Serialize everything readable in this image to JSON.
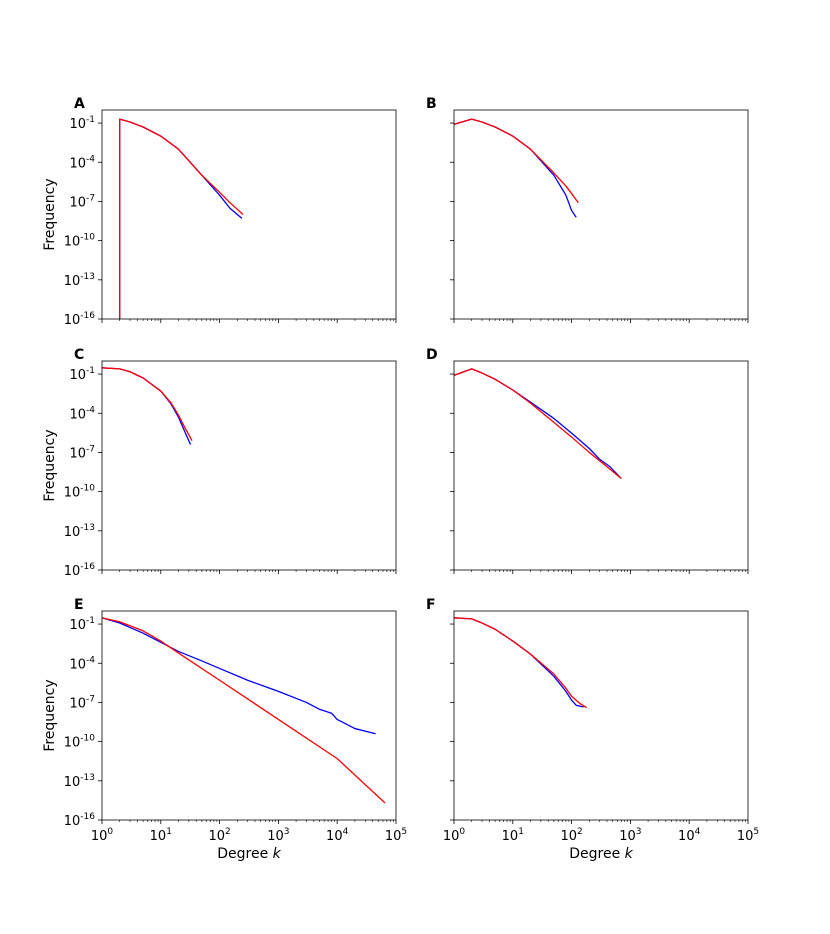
{
  "chart_data": {
    "type": "line",
    "xlabel": "Degree k",
    "ylabel": "Frequency",
    "xscale": "log",
    "yscale": "log",
    "xlim": [
      1,
      100000
    ],
    "ylim": [
      1e-16,
      1
    ],
    "xticklabels": [
      "10^0",
      "10^1",
      "10^2",
      "10^3",
      "10^4",
      "10^5"
    ],
    "yticklabels": [
      "10^-1",
      "10^-4",
      "10^-7",
      "10^-10",
      "10^-13",
      "10^-16"
    ],
    "grid": false,
    "colors": {
      "series_1": "#0000ff",
      "series_2": "#ff0000"
    },
    "panels": [
      {
        "label": "A",
        "series": [
          {
            "color": "#0000ff",
            "points": [
              [
                2,
                1e-16
              ],
              [
                2,
                0.2
              ],
              [
                3,
                0.12
              ],
              [
                5,
                0.05
              ],
              [
                10,
                0.01
              ],
              [
                20,
                0.001
              ],
              [
                50,
                1e-05
              ],
              [
                100,
                3e-07
              ],
              [
                150,
                3e-08
              ],
              [
                200,
                1e-08
              ],
              [
                240,
                5e-09
              ]
            ]
          },
          {
            "color": "#ff0000",
            "points": [
              [
                2,
                1e-16
              ],
              [
                2,
                0.2
              ],
              [
                3,
                0.12
              ],
              [
                5,
                0.05
              ],
              [
                10,
                0.01
              ],
              [
                20,
                0.001
              ],
              [
                50,
                1e-05
              ],
              [
                100,
                5e-07
              ],
              [
                150,
                8e-08
              ],
              [
                200,
                2.5e-08
              ],
              [
                250,
                1e-08
              ]
            ]
          }
        ]
      },
      {
        "label": "B",
        "series": [
          {
            "color": "#0000ff",
            "points": [
              [
                1,
                0.08
              ],
              [
                2,
                0.2
              ],
              [
                3,
                0.12
              ],
              [
                5,
                0.05
              ],
              [
                10,
                0.01
              ],
              [
                20,
                0.001
              ],
              [
                50,
                1e-05
              ],
              [
                80,
                3e-07
              ],
              [
                100,
                2e-08
              ],
              [
                120,
                6e-09
              ]
            ]
          },
          {
            "color": "#ff0000",
            "points": [
              [
                1,
                0.08
              ],
              [
                2,
                0.2
              ],
              [
                3,
                0.12
              ],
              [
                5,
                0.05
              ],
              [
                10,
                0.01
              ],
              [
                20,
                0.001
              ],
              [
                50,
                1.5e-05
              ],
              [
                80,
                1.5e-06
              ],
              [
                100,
                4e-07
              ],
              [
                130,
                8e-08
              ]
            ]
          }
        ]
      },
      {
        "label": "C",
        "series": [
          {
            "color": "#0000ff",
            "points": [
              [
                1,
                0.3
              ],
              [
                2,
                0.25
              ],
              [
                3,
                0.15
              ],
              [
                5,
                0.05
              ],
              [
                10,
                0.005
              ],
              [
                15,
                0.0005
              ],
              [
                20,
                5e-05
              ],
              [
                25,
                5e-06
              ],
              [
                32,
                4e-07
              ]
            ]
          },
          {
            "color": "#ff0000",
            "points": [
              [
                1,
                0.3
              ],
              [
                2,
                0.25
              ],
              [
                3,
                0.15
              ],
              [
                5,
                0.05
              ],
              [
                10,
                0.005
              ],
              [
                15,
                0.0006
              ],
              [
                20,
                7e-05
              ],
              [
                25,
                1e-05
              ],
              [
                34,
                8e-07
              ]
            ]
          }
        ]
      },
      {
        "label": "D",
        "series": [
          {
            "color": "#0000ff",
            "points": [
              [
                1,
                0.08
              ],
              [
                2,
                0.25
              ],
              [
                3,
                0.12
              ],
              [
                5,
                0.04
              ],
              [
                10,
                0.006
              ],
              [
                20,
                0.0007
              ],
              [
                50,
                4e-05
              ],
              [
                100,
                3e-06
              ],
              [
                200,
                2e-07
              ],
              [
                300,
                3e-08
              ],
              [
                450,
                8e-09
              ],
              [
                700,
                1e-09
              ]
            ]
          },
          {
            "color": "#ff0000",
            "points": [
              [
                1,
                0.08
              ],
              [
                2,
                0.25
              ],
              [
                3,
                0.12
              ],
              [
                5,
                0.04
              ],
              [
                10,
                0.006
              ],
              [
                20,
                0.0006
              ],
              [
                50,
                2e-05
              ],
              [
                100,
                1.5e-06
              ],
              [
                200,
                1e-07
              ],
              [
                400,
                8e-09
              ],
              [
                700,
                1e-09
              ]
            ]
          }
        ]
      },
      {
        "label": "E",
        "series": [
          {
            "color": "#0000ff",
            "points": [
              [
                1,
                0.3
              ],
              [
                2,
                0.12
              ],
              [
                5,
                0.02
              ],
              [
                10,
                0.004
              ],
              [
                20,
                0.0008
              ],
              [
                50,
                0.00015
              ],
              [
                100,
                4e-05
              ],
              [
                300,
                5e-06
              ],
              [
                1000,
                7e-07
              ],
              [
                3000,
                1e-07
              ],
              [
                5000,
                3e-08
              ],
              [
                8000,
                1.5e-08
              ],
              [
                10000,
                5e-09
              ],
              [
                20000,
                1e-09
              ],
              [
                45000,
                4e-10
              ]
            ]
          },
          {
            "color": "#ff0000",
            "points": [
              [
                1,
                0.3
              ],
              [
                2,
                0.15
              ],
              [
                5,
                0.03
              ],
              [
                10,
                0.005
              ],
              [
                20,
                0.0006
              ],
              [
                100,
                5e-06
              ],
              [
                1000,
                5e-09
              ],
              [
                10000,
                5e-12
              ],
              [
                65000,
                2e-15
              ]
            ]
          }
        ]
      },
      {
        "label": "F",
        "series": [
          {
            "color": "#0000ff",
            "points": [
              [
                1,
                0.3
              ],
              [
                2,
                0.25
              ],
              [
                3,
                0.12
              ],
              [
                5,
                0.04
              ],
              [
                10,
                0.005
              ],
              [
                20,
                0.0005
              ],
              [
                50,
                1e-05
              ],
              [
                80,
                7e-07
              ],
              [
                100,
                1.5e-07
              ],
              [
                120,
                6e-08
              ],
              [
                160,
                4.5e-08
              ]
            ]
          },
          {
            "color": "#ff0000",
            "points": [
              [
                1,
                0.3
              ],
              [
                2,
                0.25
              ],
              [
                3,
                0.12
              ],
              [
                5,
                0.04
              ],
              [
                10,
                0.005
              ],
              [
                20,
                0.0005
              ],
              [
                50,
                1.5e-05
              ],
              [
                80,
                1.2e-06
              ],
              [
                100,
                3e-07
              ],
              [
                140,
                8e-08
              ],
              [
                180,
                4e-08
              ]
            ]
          }
        ]
      }
    ]
  }
}
